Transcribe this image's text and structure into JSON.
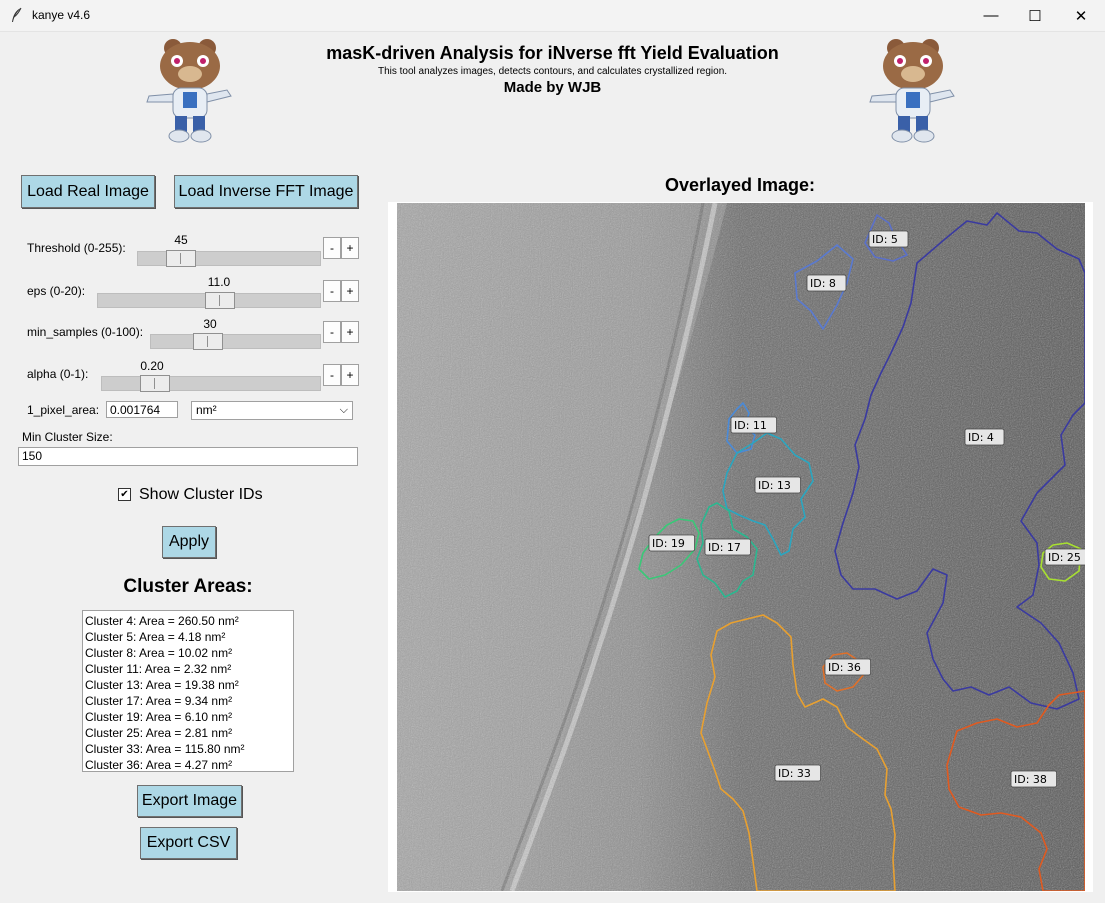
{
  "window": {
    "title": "kanye v4.6"
  },
  "header": {
    "title": "masK-driven Analysis for iNverse fft Yield Evaluation",
    "subtitle": "This tool analyzes images, detects contours, and calculates crystallized region.",
    "credit": "Made by WJB"
  },
  "buttons": {
    "load_real": "Load Real Image",
    "load_ifft": "Load Inverse FFT Image",
    "apply": "Apply",
    "export_image": "Export Image",
    "export_csv": "Export CSV"
  },
  "sliders": [
    {
      "label": "Threshold (0-255):",
      "value": "45",
      "level": 0.18
    },
    {
      "label": "eps (0-20):",
      "value": "11.0",
      "level": 0.55
    },
    {
      "label": "min_samples (0-100):",
      "value": "30",
      "level": 0.3
    },
    {
      "label": "alpha (0-1):",
      "value": "0.20",
      "level": 0.2
    }
  ],
  "stepper": {
    "minus": "-",
    "plus": "+"
  },
  "pixel_area": {
    "label": "1_pixel_area:",
    "value": "0.001764",
    "unit": "nm²"
  },
  "min_cluster": {
    "label": "Min Cluster Size:",
    "value": "150"
  },
  "show_ids": {
    "label": "Show Cluster IDs",
    "checked": true,
    "check_mark": "✔"
  },
  "cluster_areas": {
    "heading": "Cluster Areas:",
    "items": [
      "Cluster 4: Area = 260.50 nm²",
      "Cluster 5: Area = 4.18 nm²",
      "Cluster 8: Area = 10.02 nm²",
      "Cluster 11: Area = 2.32 nm²",
      "Cluster 13: Area = 19.38 nm²",
      "Cluster 17: Area = 9.34 nm²",
      "Cluster 19: Area = 6.10 nm²",
      "Cluster 25: Area = 2.81 nm²",
      "Cluster 33: Area = 115.80 nm²",
      "Cluster 36: Area = 4.27 nm²"
    ]
  },
  "overlay": {
    "heading": "Overlayed Image:",
    "clusters": [
      {
        "id": "ID: 5",
        "color": "#5b70c8"
      },
      {
        "id": "ID: 8",
        "color": "#5a7ad0"
      },
      {
        "id": "ID: 4",
        "color": "#3a3aa0"
      },
      {
        "id": "ID: 11",
        "color": "#4a8ad8"
      },
      {
        "id": "ID: 13",
        "color": "#2aa6c0"
      },
      {
        "id": "ID: 19",
        "color": "#3ac878"
      },
      {
        "id": "ID: 17",
        "color": "#2ab890"
      },
      {
        "id": "ID: 25",
        "color": "#a8e030"
      },
      {
        "id": "ID: 36",
        "color": "#e0702a"
      },
      {
        "id": "ID: 33",
        "color": "#e8a030"
      },
      {
        "id": "ID: 38",
        "color": "#e05a20"
      }
    ]
  },
  "icons": {
    "app": "feather-icon",
    "minimize": "minimize-icon",
    "maximize": "maximize-icon",
    "close": "close-icon",
    "mascot": "bear-mascot-icon",
    "dropdown": "chevron-down-icon"
  },
  "glyphs": {
    "minimize": "—",
    "maximize": "☐",
    "close": "✕",
    "chevron": "⌵"
  }
}
